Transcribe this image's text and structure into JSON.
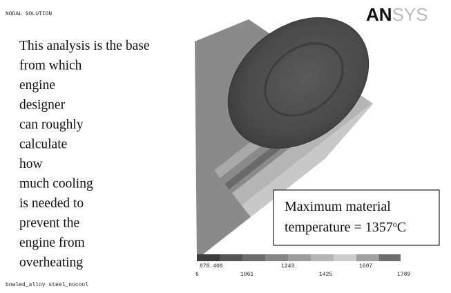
{
  "header": {
    "label": "NODAL SOLUTION",
    "logo_bold": "AN",
    "logo_light": "SYS"
  },
  "description": {
    "lines": [
      "This analysis is the base",
      "from which",
      "engine",
      "designer",
      "can roughly",
      "calculate",
      "how",
      "much cooling",
      "is needed to",
      "prevent the",
      "engine from",
      "overheating"
    ]
  },
  "callout": {
    "line1": "Maximum material",
    "line2_prefix": "temperature = 1357",
    "degree": "o",
    "unit": "C"
  },
  "legend": {
    "upper_labels": [
      "878.408",
      "1243",
      "1607"
    ],
    "lower_labels": [
      "6",
      "1061",
      "1425",
      "1789"
    ]
  },
  "footer": {
    "label": "bowled_alloy steel_nocool"
  }
}
